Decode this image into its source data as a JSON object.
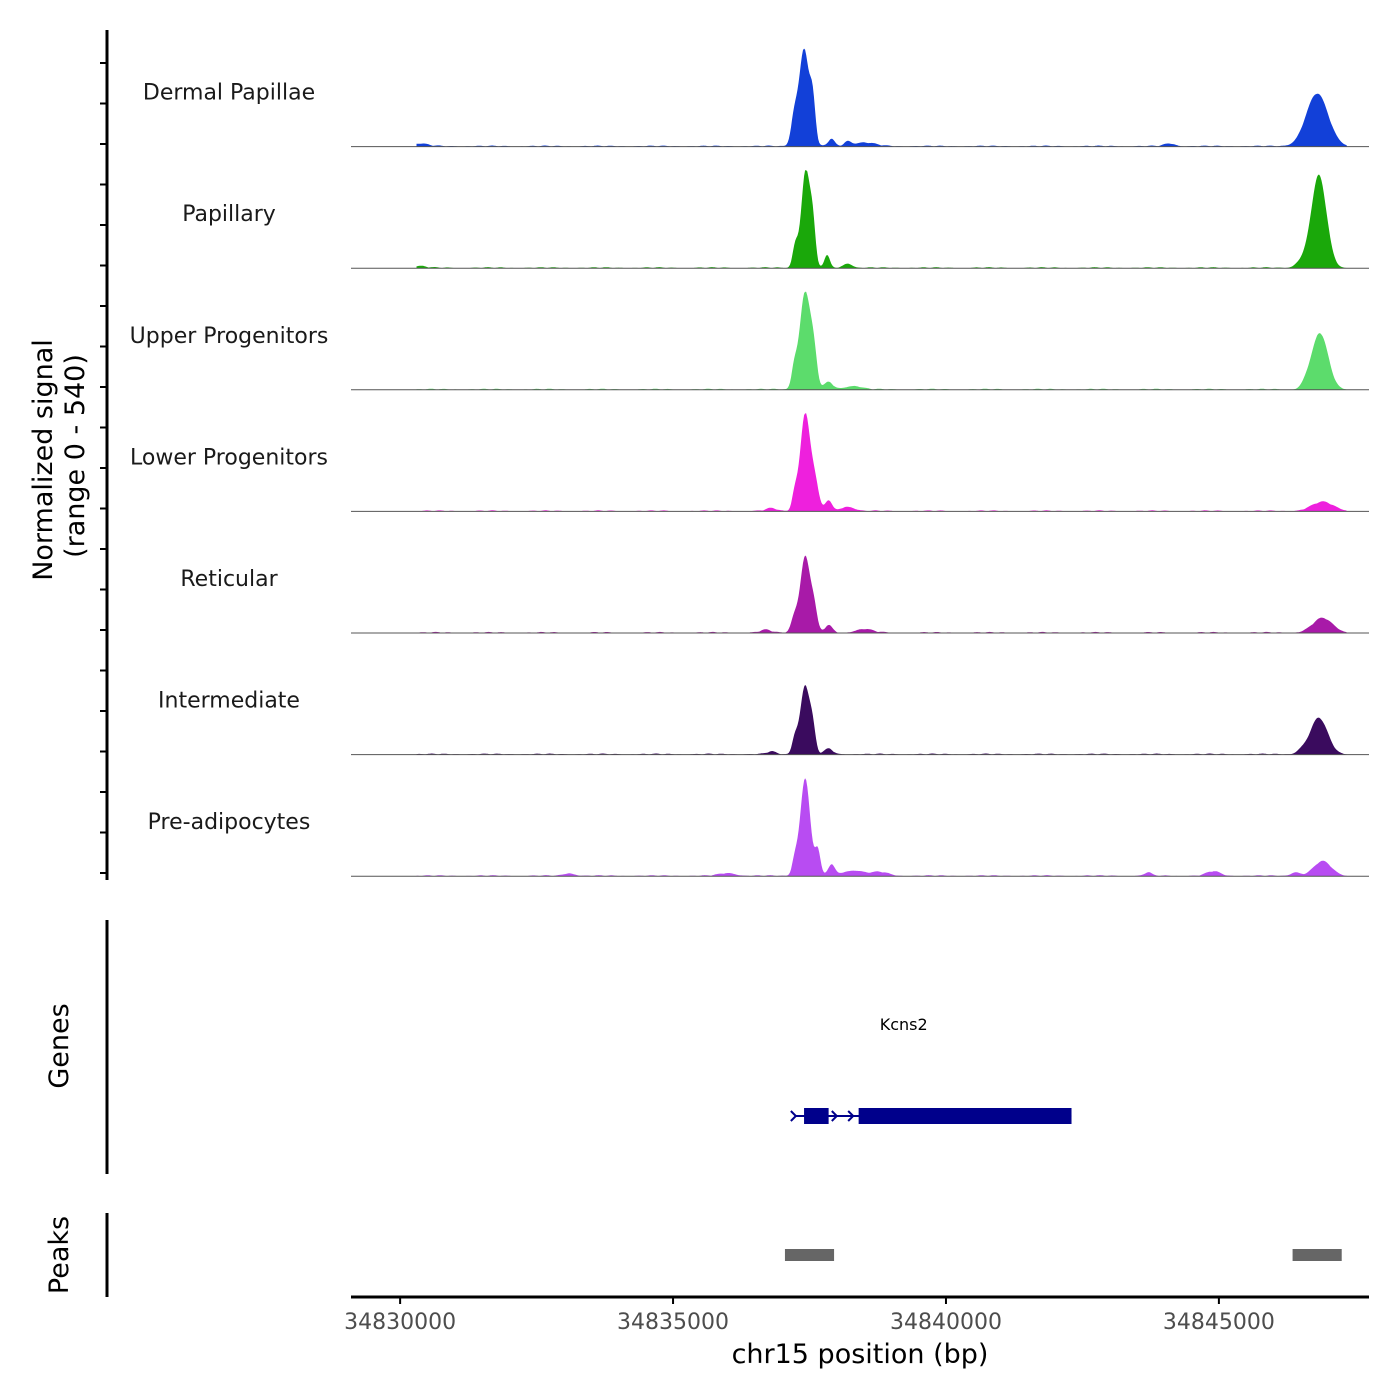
{
  "chart_data": {
    "type": "area",
    "ylabel_line1": "Normalized signal",
    "ylabel_line2": "(range 0 - 540)",
    "y_range": [
      0,
      540
    ],
    "xlabel": "chr15 position (bp)",
    "x_range": [
      34829100,
      34847750
    ],
    "x_ticks": [
      34830000,
      34835000,
      34840000,
      34845000
    ],
    "x_tick_labels": [
      "34830000",
      "34835000",
      "34840000",
      "34845000"
    ],
    "tracks": [
      {
        "name": "Dermal Papillae",
        "color": "#1240d8",
        "peaks": [
          [
            34837400,
            540,
            90
          ],
          [
            34837560,
            220,
            50
          ],
          [
            34837220,
            150,
            60
          ],
          [
            34837900,
            40,
            60
          ],
          [
            34838200,
            25,
            60
          ],
          [
            34846800,
            290,
            200
          ],
          [
            34830350,
            15,
            150
          ],
          [
            34838500,
            20,
            200
          ],
          [
            34844100,
            15,
            100
          ]
        ]
      },
      {
        "name": "Papillary",
        "color": "#1aa80a",
        "peaks": [
          [
            34837430,
            540,
            80
          ],
          [
            34837560,
            200,
            50
          ],
          [
            34837240,
            120,
            50
          ],
          [
            34837820,
            70,
            50
          ],
          [
            34838200,
            25,
            80
          ],
          [
            34846830,
            510,
            140
          ],
          [
            34846500,
            30,
            100
          ],
          [
            34830350,
            10,
            120
          ]
        ]
      },
      {
        "name": "Upper Progenitors",
        "color": "#5cdc6c",
        "peaks": [
          [
            34837420,
            540,
            100
          ],
          [
            34837580,
            150,
            60
          ],
          [
            34837220,
            100,
            50
          ],
          [
            34837850,
            40,
            80
          ],
          [
            34838300,
            20,
            150
          ],
          [
            34846850,
            310,
            150
          ],
          [
            34846600,
            20,
            80
          ]
        ]
      },
      {
        "name": "Lower Progenitors",
        "color": "#ee20dd",
        "peaks": [
          [
            34837420,
            540,
            90
          ],
          [
            34837600,
            150,
            70
          ],
          [
            34837230,
            90,
            50
          ],
          [
            34837850,
            60,
            60
          ],
          [
            34838200,
            25,
            120
          ],
          [
            34846900,
            50,
            200
          ],
          [
            34836800,
            15,
            100
          ]
        ]
      },
      {
        "name": "Reticular",
        "color": "#a81aa8",
        "peaks": [
          [
            34837420,
            420,
            90
          ],
          [
            34837580,
            120,
            60
          ],
          [
            34837220,
            80,
            60
          ],
          [
            34837850,
            40,
            70
          ],
          [
            34838500,
            20,
            150
          ],
          [
            34846900,
            80,
            180
          ],
          [
            34836700,
            15,
            100
          ]
        ]
      },
      {
        "name": "Intermediate",
        "color": "#3a0b5e",
        "peaks": [
          [
            34837420,
            380,
            90
          ],
          [
            34837560,
            100,
            50
          ],
          [
            34837230,
            80,
            50
          ],
          [
            34837850,
            30,
            80
          ],
          [
            34846830,
            200,
            160
          ],
          [
            34846500,
            15,
            80
          ],
          [
            34836800,
            15,
            80
          ]
        ]
      },
      {
        "name": "Pre-adipocytes",
        "color": "#b84cf2",
        "peaks": [
          [
            34837420,
            540,
            90
          ],
          [
            34837650,
            140,
            50
          ],
          [
            34837230,
            80,
            50
          ],
          [
            34837900,
            60,
            60
          ],
          [
            34838300,
            30,
            200
          ],
          [
            34838800,
            20,
            150
          ],
          [
            34846900,
            80,
            160
          ],
          [
            34844900,
            25,
            120
          ],
          [
            34843700,
            20,
            60
          ],
          [
            34836000,
            15,
            150
          ],
          [
            34833100,
            15,
            100
          ],
          [
            34846400,
            20,
            80
          ]
        ]
      }
    ],
    "genes": [
      {
        "name": "Kcns2",
        "start": 34837250,
        "end": 34842300,
        "strand": "+",
        "exons": [
          [
            34837400,
            34837850
          ],
          [
            34838400,
            34842300
          ]
        ]
      }
    ],
    "peaks_track_label": "Peaks",
    "genes_track_label": "Genes",
    "peak_regions": [
      [
        34837050,
        34837950
      ],
      [
        34846350,
        34847250
      ]
    ],
    "peak_color": "#666666",
    "gene_color": "#00008b"
  }
}
